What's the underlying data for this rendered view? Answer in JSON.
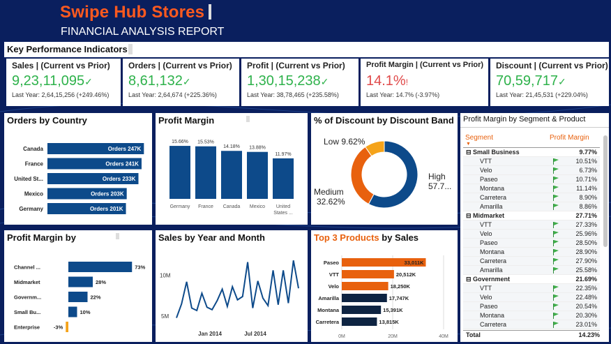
{
  "header": {
    "brand": "Swipe Hub Stores",
    "subtitle": "FINANCIAL ANALYSIS  REPORT"
  },
  "kpi_section": {
    "title": "Key Performance Indicators"
  },
  "kpis": [
    {
      "title": "Sales | (Current vs Prior)",
      "value": "9,23,11,095",
      "status": "✓",
      "last": "Last Year: 2,64,15,256 (+249.46%)"
    },
    {
      "title": "Orders | (Current vs Prior)",
      "value": "8,61,132",
      "status": "✓",
      "last": "Last Year: 2,64,674 (+225.36%)"
    },
    {
      "title": "Profit | (Current vs Prior)",
      "value": "1,30,15,238",
      "status": "✓",
      "last": "Last Year: 38,78,465 (+235.58%)"
    },
    {
      "title": "Profit Margin | (Current vs Prior)",
      "value": "14.1%",
      "status": "!",
      "last": "Last Year: 14.7% (-3.97%)"
    },
    {
      "title": "Discount | (Current vs Prior)",
      "value": "70,59,717",
      "status": "✓",
      "last": "Last Year: 21,45,531 (+229.04%)"
    }
  ],
  "colors": {
    "navy": "#0d4a8a",
    "orange": "#e8610e",
    "yellow": "#f5a31a",
    "green": "#2eb24b",
    "red": "#e04a4a",
    "dark": "#0e2442"
  },
  "orders_by_country": {
    "title": "Orders by Country",
    "chart_data": {
      "type": "bar",
      "orientation": "horizontal",
      "categories": [
        "Canada",
        "France",
        "United St...",
        "Mexico",
        "Germany"
      ],
      "values": [
        247,
        241,
        233,
        203,
        201
      ],
      "labels": [
        "Orders 247K",
        "Orders 241K",
        "Orders 233K",
        "Orders 203K",
        "Orders 201K"
      ]
    }
  },
  "profit_margin_country": {
    "title": "Profit Margin",
    "chart_data": {
      "type": "bar",
      "categories": [
        "Germany",
        "France",
        "Canada",
        "Mexico",
        "United States ..."
      ],
      "values": [
        15.66,
        15.53,
        14.18,
        13.88,
        11.97
      ],
      "labels": [
        "15.66%",
        "15.53%",
        "14.18%",
        "13.88%",
        "11.97%"
      ]
    }
  },
  "discount_band": {
    "title": "% of Discount by Discount Band",
    "chart_data": {
      "type": "pie",
      "donut": true,
      "categories": [
        "High",
        "Medium",
        "Low"
      ],
      "values": [
        57.76,
        32.62,
        9.62
      ],
      "colors": [
        "#0d4a8a",
        "#e8610e",
        "#f5a31a"
      ],
      "labels": [
        "High 57.7...",
        "Medium 32.62%",
        "Low 9.62%"
      ]
    }
  },
  "segment_table": {
    "title": "Profit Margin by Segment & Product",
    "col_segment": "Segment",
    "col_margin": "Profit Margin",
    "rows": [
      {
        "kind": "seg",
        "name": "Small Business",
        "value": "9.77%"
      },
      {
        "kind": "sub",
        "name": "VTT",
        "value": "10.51%"
      },
      {
        "kind": "sub",
        "name": "Velo",
        "value": "6.73%"
      },
      {
        "kind": "sub",
        "name": "Paseo",
        "value": "10.71%"
      },
      {
        "kind": "sub",
        "name": "Montana",
        "value": "11.14%"
      },
      {
        "kind": "sub",
        "name": "Carretera",
        "value": "8.90%"
      },
      {
        "kind": "sub",
        "name": "Amarilla",
        "value": "8.86%"
      },
      {
        "kind": "seg",
        "name": "Midmarket",
        "value": "27.71%"
      },
      {
        "kind": "sub",
        "name": "VTT",
        "value": "27.33%"
      },
      {
        "kind": "sub",
        "name": "Velo",
        "value": "25.96%"
      },
      {
        "kind": "sub",
        "name": "Paseo",
        "value": "28.50%"
      },
      {
        "kind": "sub",
        "name": "Montana",
        "value": "28.90%"
      },
      {
        "kind": "sub",
        "name": "Carretera",
        "value": "27.90%"
      },
      {
        "kind": "sub",
        "name": "Amarilla",
        "value": "25.58%"
      },
      {
        "kind": "seg",
        "name": "Government",
        "value": "21.69%"
      },
      {
        "kind": "sub",
        "name": "VTT",
        "value": "22.35%"
      },
      {
        "kind": "sub",
        "name": "Velo",
        "value": "22.48%"
      },
      {
        "kind": "sub",
        "name": "Paseo",
        "value": "20.54%"
      },
      {
        "kind": "sub",
        "name": "Montana",
        "value": "20.30%"
      },
      {
        "kind": "sub",
        "name": "Carretera",
        "value": "23.01%"
      }
    ],
    "total_label": "Total",
    "total_value": "14.23%"
  },
  "profit_margin_segment": {
    "title": "Profit Margin by",
    "chart_data": {
      "type": "bar",
      "orientation": "horizontal",
      "categories": [
        "Channel ...",
        "Midmarket",
        "Governm...",
        "Small Bu...",
        "Enterprise"
      ],
      "values": [
        73,
        28,
        22,
        10,
        -3
      ],
      "labels": [
        "73%",
        "28%",
        "22%",
        "10%",
        "-3%"
      ]
    }
  },
  "sales_year_month": {
    "title": "Sales by Year and Month",
    "chart_data": {
      "type": "line",
      "y_ticks": [
        "10M",
        "5M"
      ],
      "x_ticks": [
        "Jan 2014",
        "Jul 2014"
      ],
      "values": [
        4.8,
        6.5,
        9.2,
        6.0,
        5.7,
        7.8,
        6.1,
        5.8,
        6.9,
        8.3,
        6.2,
        8.6,
        7.0,
        7.4,
        11.6,
        6.0,
        9.3,
        7.2,
        6.3,
        10.6,
        6.4,
        10.6,
        6.6,
        11.8,
        8.4
      ]
    }
  },
  "top_products": {
    "title_highlight": "Top 3 Products",
    "title_rest": " by Sales",
    "chart_data": {
      "type": "bar",
      "orientation": "horizontal",
      "categories": [
        "Paseo",
        "VTT",
        "Velo",
        "Amarilla",
        "Montana",
        "Carretera"
      ],
      "values": [
        33011,
        20512,
        18250,
        17747,
        15391,
        13815
      ],
      "labels": [
        "33,011K",
        "20,512K",
        "18,250K",
        "17,747K",
        "15,391K",
        "13,815K"
      ],
      "x_ticks": [
        "0M",
        "20M",
        "40M"
      ],
      "xlim": [
        0,
        40000
      ]
    }
  }
}
